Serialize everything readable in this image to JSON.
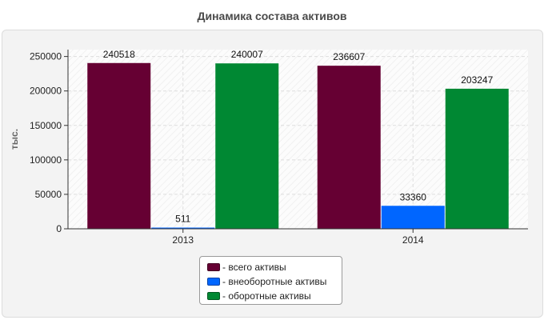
{
  "chart_data": {
    "type": "bar",
    "title": "Динамика состава активов",
    "ylabel": "тыс.",
    "xlabel": "",
    "categories": [
      "2013",
      "2014"
    ],
    "series": [
      {
        "name": "- всего активы",
        "values": [
          240518,
          236607
        ],
        "color": "#660033"
      },
      {
        "name": "- внеоборотные активы",
        "values": [
          511,
          33360
        ],
        "color": "#0066ff"
      },
      {
        "name": "- оборотные активы",
        "values": [
          240007,
          203247
        ],
        "color": "#008833"
      }
    ],
    "ylim": [
      0,
      260000
    ],
    "yticks": [
      "0",
      "50000",
      "100000",
      "150000",
      "200000",
      "250000"
    ],
    "grid": true,
    "legend_position": "bottom-center"
  }
}
